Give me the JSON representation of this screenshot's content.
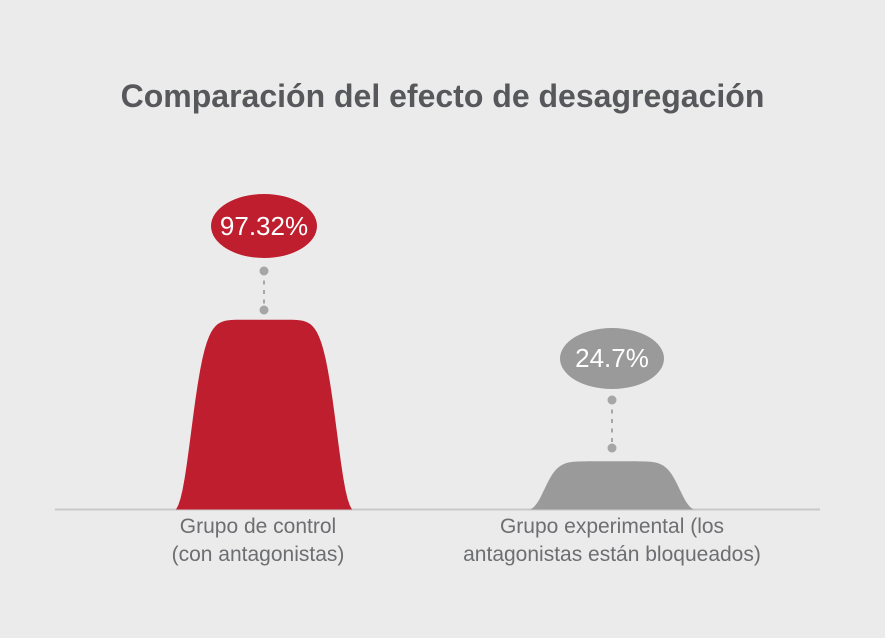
{
  "title": "Comparación del efecto de desagregación",
  "chart_data": {
    "type": "area",
    "style": "bell-distribution-comparison",
    "title": "Comparación del efecto de desagregación",
    "ylim": [
      0,
      100
    ],
    "grid": false,
    "legend": "none",
    "categories": [
      "Grupo de control (con antagonistas)",
      "Grupo experimental (los antagonistas están bloqueados)"
    ],
    "values": [
      97.32,
      24.7
    ],
    "groups": [
      {
        "name": "Grupo de control (con antagonistas)",
        "label_lines": [
          "Grupo de control",
          "(con antagonistas)"
        ],
        "value": 97.32,
        "value_label": "97.32%",
        "color": "#be1e2d"
      },
      {
        "name": "Grupo experimental (los antagonistas están bloqueados)",
        "label_lines": [
          "Grupo experimental (los",
          "antagonistas están bloqueados)"
        ],
        "value": 24.7,
        "value_label": "24.7%",
        "color": "#9a9a9a"
      }
    ]
  },
  "colors": {
    "background": "#ebebeb",
    "title_text": "#57585b",
    "caption_text": "#6d6e71",
    "axis_line": "#c9c9c9",
    "connector": "#a6a6a6",
    "bubble_text": "#ffffff"
  }
}
